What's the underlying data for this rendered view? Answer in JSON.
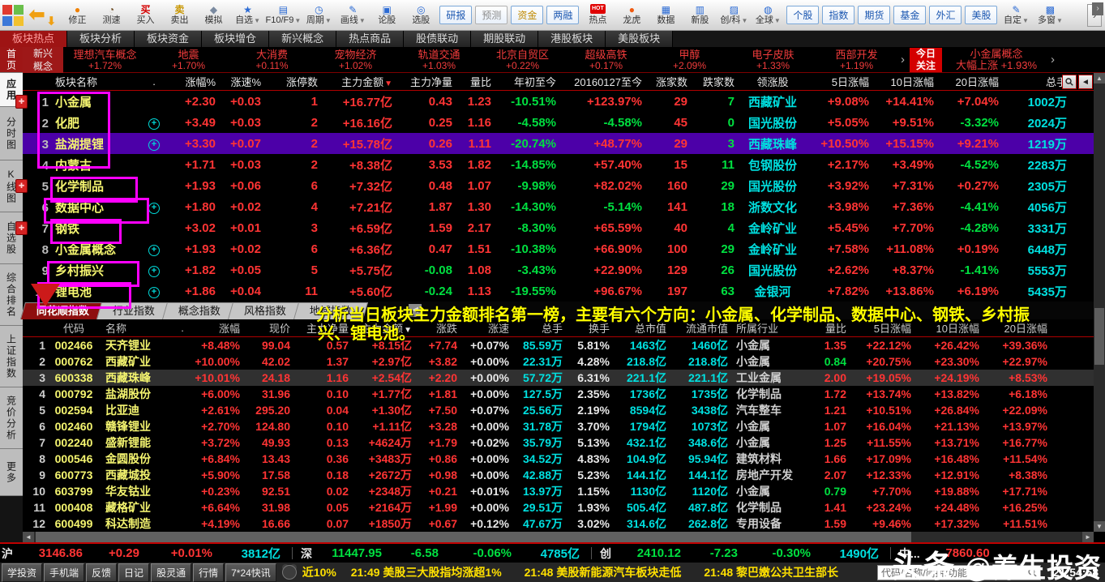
{
  "toolbar": {
    "expand_arrow": "›",
    "items": [
      {
        "id": "correct",
        "label": "修正",
        "icon": "correct"
      },
      {
        "id": "speed-test",
        "label": "测速",
        "icon": "speed"
      },
      {
        "id": "buy",
        "label": "买入",
        "icon": "buy"
      },
      {
        "id": "sell",
        "label": "卖出",
        "icon": "sell"
      },
      {
        "id": "simulate",
        "label": "模拟",
        "icon": "simulate"
      },
      {
        "id": "watchlist",
        "label": "自选",
        "icon": "star",
        "caret": true
      },
      {
        "id": "f10-f9",
        "label": "F10/F9",
        "icon": "doc",
        "caret": true
      },
      {
        "id": "period",
        "label": "周期",
        "icon": "period",
        "caret": true
      },
      {
        "id": "draw-line",
        "label": "画线",
        "icon": "draw",
        "caret": true
      },
      {
        "id": "stock-forum",
        "label": "论股",
        "icon": "forum"
      },
      {
        "id": "stock-picker",
        "label": "选股",
        "icon": "picker"
      },
      {
        "id": "research-report",
        "label": "研报",
        "button": "blue"
      },
      {
        "id": "forecast",
        "label": "预测",
        "button": "grey"
      },
      {
        "id": "capital",
        "label": "资金",
        "button": "gold"
      },
      {
        "id": "margin",
        "label": "两融",
        "button": "blue"
      },
      {
        "id": "hot",
        "label": "热点",
        "icon": "hot"
      },
      {
        "id": "dragon-tiger",
        "label": "龙虎",
        "icon": "dragon"
      },
      {
        "id": "data-center",
        "label": "数据",
        "icon": "data"
      },
      {
        "id": "new-stock",
        "label": "新股",
        "icon": "newstock"
      },
      {
        "id": "chinext-star",
        "label": "创/科",
        "icon": "board",
        "caret": true
      },
      {
        "id": "global",
        "label": "全球",
        "icon": "globe",
        "caret": true
      },
      {
        "id": "stocks",
        "label": "个股",
        "button": "blue"
      },
      {
        "id": "indices",
        "label": "指数",
        "button": "blue"
      },
      {
        "id": "futures",
        "label": "期货",
        "button": "blue"
      },
      {
        "id": "funds",
        "label": "基金",
        "button": "blue"
      },
      {
        "id": "forex",
        "label": "外汇",
        "button": "blue"
      },
      {
        "id": "us-stocks",
        "label": "美股",
        "button": "blue"
      },
      {
        "id": "custom",
        "label": "自定",
        "icon": "custom",
        "caret": true
      },
      {
        "id": "multi-window",
        "label": "多窗",
        "icon": "multiwin",
        "caret": true
      }
    ]
  },
  "nav_tabs": {
    "active_index": 0,
    "items": [
      {
        "id": "sector-hot",
        "label": "板块热点"
      },
      {
        "id": "sector-analysis",
        "label": "板块分析"
      },
      {
        "id": "sector-capital",
        "label": "板块资金"
      },
      {
        "id": "sector-position",
        "label": "板块增仓"
      },
      {
        "id": "new-concepts",
        "label": "新兴概念"
      },
      {
        "id": "hot-commodity",
        "label": "热点商品"
      },
      {
        "id": "stock-bond",
        "label": "股债联动"
      },
      {
        "id": "futures-stock",
        "label": "期股联动"
      },
      {
        "id": "hk-sectors",
        "label": "港股板块"
      },
      {
        "id": "us-sectors",
        "label": "美股板块"
      }
    ]
  },
  "sidebar": {
    "items": [
      {
        "id": "home",
        "label": "首页",
        "style": "home"
      },
      {
        "id": "apps",
        "label": "应用",
        "style": "active"
      },
      {
        "id": "timeline-chart",
        "label": "分时图"
      },
      {
        "id": "kline-chart",
        "label": "K线图"
      },
      {
        "id": "watchlist",
        "label": "自选股"
      },
      {
        "id": "ranking",
        "label": "综合排名"
      },
      {
        "id": "sse-index",
        "label": "上证指数"
      },
      {
        "id": "auction-analysis",
        "label": "竞价分析"
      },
      {
        "id": "more",
        "label": "更多"
      }
    ]
  },
  "concept_strip": {
    "label_line1": "新兴",
    "label_line2": "概念",
    "items": [
      {
        "name": "理想汽车概念",
        "pct": "+1.72%"
      },
      {
        "name": "地震",
        "pct": "+1.70%"
      },
      {
        "name": "大消费",
        "pct": "+0.11%"
      },
      {
        "name": "宠物经济",
        "pct": "+1.02%"
      },
      {
        "name": "轨道交通",
        "pct": "+1.03%"
      },
      {
        "name": "北京自贸区",
        "pct": "+0.22%"
      },
      {
        "name": "超级高铁",
        "pct": "+0.17%"
      },
      {
        "name": "甲醇",
        "pct": "+2.09%"
      },
      {
        "name": "电子皮肤",
        "pct": "+1.33%"
      },
      {
        "name": "西部开发",
        "pct": "+1.19%"
      }
    ],
    "arrow": "›",
    "today_line1": "今日",
    "today_line2": "关注",
    "focus_name": "小金属概念",
    "focus_change": "大幅上涨 +1.93%",
    "arrow2": "›"
  },
  "sector_table": {
    "sort_header": "主力金额",
    "headers": [
      "板块名称",
      ".",
      "涨幅%",
      "涨速%",
      "涨停数",
      "主力金额",
      "主力净量",
      "量比",
      "年初至今",
      "20160127至今",
      "涨家数",
      "跌家数",
      "领涨股",
      "5日涨幅",
      "10日涨幅",
      "20日涨幅",
      "总手"
    ],
    "rows": [
      {
        "num": "1",
        "name": "小金属",
        "marker": true,
        "cells": [
          "+2.30",
          "+0.03",
          "1",
          "+16.77亿",
          "0.43",
          "1.23",
          "-10.51%",
          "+123.97%",
          "29",
          "7",
          "西藏矿业",
          "+9.08%",
          "+14.41%",
          "+7.04%",
          "1002万"
        ]
      },
      {
        "num": "2",
        "name": "化肥",
        "plus": true,
        "cells": [
          "+3.49",
          "+0.03",
          "2",
          "+16.16亿",
          "0.25",
          "1.16",
          "-4.58%",
          "-4.58%",
          "45",
          "0",
          "国光股份",
          "+5.05%",
          "+9.51%",
          "-3.32%",
          "2024万"
        ]
      },
      {
        "num": "3",
        "name": "盐湖提锂",
        "plus": true,
        "selected": true,
        "cells": [
          "+3.30",
          "+0.07",
          "2",
          "+15.78亿",
          "0.26",
          "1.11",
          "-20.74%",
          "+48.77%",
          "29",
          "3",
          "西藏珠峰",
          "+10.50%",
          "+15.15%",
          "+9.21%",
          "1219万"
        ]
      },
      {
        "num": "4",
        "name": "内蒙古",
        "cells": [
          "+1.71",
          "+0.03",
          "2",
          "+8.38亿",
          "3.53",
          "1.82",
          "-14.85%",
          "+57.40%",
          "15",
          "11",
          "包钢股份",
          "+2.17%",
          "+3.49%",
          "-4.52%",
          "2283万"
        ]
      },
      {
        "num": "5",
        "name": "化学制品",
        "marker": true,
        "cells": [
          "+1.93",
          "+0.06",
          "6",
          "+7.32亿",
          "0.48",
          "1.07",
          "-9.98%",
          "+82.02%",
          "160",
          "29",
          "国光股份",
          "+3.92%",
          "+7.31%",
          "+0.27%",
          "2305万"
        ]
      },
      {
        "num": "6",
        "name": "数据中心",
        "plus": true,
        "cells": [
          "+1.80",
          "+0.02",
          "4",
          "+7.21亿",
          "1.87",
          "1.30",
          "-14.30%",
          "-5.14%",
          "141",
          "18",
          "浙数文化",
          "+3.98%",
          "+7.36%",
          "-4.41%",
          "4056万"
        ]
      },
      {
        "num": "7",
        "name": "钢铁",
        "marker": true,
        "cells": [
          "+3.02",
          "+0.01",
          "3",
          "+6.59亿",
          "1.59",
          "2.17",
          "-8.30%",
          "+65.59%",
          "40",
          "4",
          "金岭矿业",
          "+5.45%",
          "+7.70%",
          "-4.28%",
          "3331万"
        ]
      },
      {
        "num": "8",
        "name": "小金属概念",
        "plus": true,
        "cells": [
          "+1.93",
          "+0.02",
          "6",
          "+6.36亿",
          "0.47",
          "1.51",
          "-10.38%",
          "+66.90%",
          "100",
          "29",
          "金岭矿业",
          "+7.58%",
          "+11.08%",
          "+0.19%",
          "6448万"
        ]
      },
      {
        "num": "9",
        "name": "乡村振兴",
        "plus": true,
        "cells": [
          "+1.82",
          "+0.05",
          "5",
          "+5.75亿",
          "-0.08",
          "1.08",
          "-3.43%",
          "+22.90%",
          "129",
          "26",
          "国光股份",
          "+2.62%",
          "+8.37%",
          "-1.41%",
          "5553万"
        ]
      },
      {
        "num": "10",
        "name": "锂电池",
        "plus": true,
        "cells": [
          "+1.86",
          "+0.04",
          "11",
          "+5.60亿",
          "-0.24",
          "1.13",
          "-19.55%",
          "+96.67%",
          "197",
          "63",
          "金银河",
          "+7.82%",
          "+13.86%",
          "+6.19%",
          "5435万"
        ]
      }
    ]
  },
  "index_tabs": {
    "active_index": 0,
    "left_arrow": "◀",
    "right_arrow": "›",
    "items": [
      {
        "id": "ths-index",
        "label": "同花顺指数"
      },
      {
        "id": "industry-index",
        "label": "行业指数"
      },
      {
        "id": "concept-index",
        "label": "概念指数"
      },
      {
        "id": "style-index",
        "label": "风格指数"
      },
      {
        "id": "region-index",
        "label": "地域指数"
      }
    ]
  },
  "annotation": {
    "line1": "分析当日板块主力金额排名第一榜，主要有六个方向：小金属、化学制品、数据中心、钢铁、乡村振",
    "line2": "兴、锂电池。"
  },
  "stock_table": {
    "sort_header": "主力金额",
    "headers": [
      "",
      "代码",
      "名称",
      ".",
      "涨幅",
      "现价",
      "主力净量",
      "主力金额",
      "涨跌",
      "涨速",
      "总手",
      "换手",
      "总市值",
      "流通市值",
      "所属行业",
      "量比",
      "5日涨幅",
      "10日涨幅",
      "20日涨幅"
    ],
    "rows": [
      {
        "num": "1",
        "code": "002466",
        "name": "天齐锂业",
        "cells": [
          "+8.48%",
          "99.04",
          "0.57",
          "+8.15亿",
          "+7.74",
          "+0.07%",
          "85.59万",
          "5.81%",
          "1463亿",
          "1460亿",
          "小金属",
          "1.35",
          "+22.12%",
          "+26.42%",
          "+39.36%"
        ]
      },
      {
        "num": "2",
        "code": "000762",
        "name": "西藏矿业",
        "cells": [
          "+10.00%",
          "42.02",
          "1.37",
          "+2.97亿",
          "+3.82",
          "+0.00%",
          "22.31万",
          "4.28%",
          "218.8亿",
          "218.8亿",
          "小金属",
          "0.84",
          "+20.75%",
          "+23.30%",
          "+22.97%"
        ]
      },
      {
        "num": "3",
        "code": "600338",
        "name": "西藏珠峰",
        "selected": true,
        "cells": [
          "+10.01%",
          "24.18",
          "1.16",
          "+2.54亿",
          "+2.20",
          "+0.00%",
          "57.72万",
          "6.31%",
          "221.1亿",
          "221.1亿",
          "工业金属",
          "2.00",
          "+19.05%",
          "+24.19%",
          "+8.53%"
        ]
      },
      {
        "num": "4",
        "code": "000792",
        "name": "盐湖股份",
        "cells": [
          "+6.00%",
          "31.96",
          "0.10",
          "+1.77亿",
          "+1.81",
          "+0.00%",
          "127.5万",
          "2.35%",
          "1736亿",
          "1735亿",
          "化学制品",
          "1.72",
          "+13.74%",
          "+13.82%",
          "+6.18%"
        ]
      },
      {
        "num": "5",
        "code": "002594",
        "name": "比亚迪",
        "cells": [
          "+2.61%",
          "295.20",
          "0.04",
          "+1.30亿",
          "+7.50",
          "+0.07%",
          "25.56万",
          "2.19%",
          "8594亿",
          "3438亿",
          "汽车整车",
          "1.21",
          "+10.51%",
          "+26.84%",
          "+22.09%"
        ]
      },
      {
        "num": "6",
        "code": "002460",
        "name": "赣锋锂业",
        "cells": [
          "+2.70%",
          "124.80",
          "0.10",
          "+1.11亿",
          "+3.28",
          "+0.00%",
          "31.78万",
          "3.70%",
          "1794亿",
          "1073亿",
          "小金属",
          "1.07",
          "+16.04%",
          "+21.13%",
          "+13.97%"
        ]
      },
      {
        "num": "7",
        "code": "002240",
        "name": "盛新锂能",
        "cells": [
          "+3.72%",
          "49.93",
          "0.13",
          "+4624万",
          "+1.79",
          "+0.02%",
          "35.79万",
          "5.13%",
          "432.1亿",
          "348.6亿",
          "小金属",
          "1.25",
          "+11.55%",
          "+13.71%",
          "+16.77%"
        ]
      },
      {
        "num": "8",
        "code": "000546",
        "name": "金圆股份",
        "cells": [
          "+6.84%",
          "13.43",
          "0.36",
          "+3483万",
          "+0.86",
          "+0.00%",
          "34.52万",
          "4.83%",
          "104.9亿",
          "95.94亿",
          "建筑材料",
          "1.66",
          "+17.09%",
          "+16.48%",
          "+11.54%"
        ]
      },
      {
        "num": "9",
        "code": "600773",
        "name": "西藏城投",
        "cells": [
          "+5.90%",
          "17.58",
          "0.18",
          "+2672万",
          "+0.98",
          "+0.00%",
          "42.88万",
          "5.23%",
          "144.1亿",
          "144.1亿",
          "房地产开发",
          "2.07",
          "+12.33%",
          "+12.91%",
          "+8.38%"
        ]
      },
      {
        "num": "10",
        "code": "603799",
        "name": "华友钴业",
        "cells": [
          "+0.23%",
          "92.51",
          "0.02",
          "+2348万",
          "+0.21",
          "+0.01%",
          "13.97万",
          "1.15%",
          "1130亿",
          "1120亿",
          "小金属",
          "0.79",
          "+7.70%",
          "+19.88%",
          "+17.71%"
        ]
      },
      {
        "num": "11",
        "code": "000408",
        "name": "藏格矿业",
        "cells": [
          "+6.64%",
          "31.98",
          "0.05",
          "+2164万",
          "+1.99",
          "+0.00%",
          "29.51万",
          "1.93%",
          "505.4亿",
          "487.8亿",
          "化学制品",
          "1.41",
          "+23.24%",
          "+24.48%",
          "+16.25%"
        ]
      },
      {
        "num": "12",
        "code": "600499",
        "name": "科达制造",
        "cells": [
          "+4.19%",
          "16.66",
          "0.07",
          "+1850万",
          "+0.67",
          "+0.12%",
          "47.67万",
          "3.02%",
          "314.6亿",
          "262.8亿",
          "专用设备",
          "1.59",
          "+9.46%",
          "+17.32%",
          "+11.51%"
        ]
      }
    ]
  },
  "index_bar": {
    "segments": [
      {
        "label": "沪",
        "value": "3146.86",
        "chg": "+0.29",
        "pct": "+0.01%",
        "amt": "3812亿",
        "trend": "up"
      },
      {
        "label": "深",
        "value": "11447.95",
        "chg": "-6.58",
        "pct": "-0.06%",
        "amt": "4785亿",
        "trend": "down"
      },
      {
        "label": "创",
        "value": "2410.12",
        "chg": "-7.23",
        "pct": "-0.30%",
        "amt": "1490亿",
        "trend": "down"
      },
      {
        "label": "中...",
        "value": "7860.60",
        "chg": "",
        "pct": "",
        "amt": "",
        "trend": "up"
      }
    ]
  },
  "status_bar": {
    "buttons": [
      "学投资",
      "手机端",
      "反馈",
      "日记",
      "股灵通",
      "行情",
      "7*24快讯"
    ],
    "news_text": "近10%　 21:49 美股三大股指均涨超1%　　21:48 美股新能源汽车板块走低　　21:48 黎巴嫩公共卫生部长",
    "search_placeholder": "代码/名称/简拼/功能",
    "clock": "21:54:58"
  },
  "watermark": {
    "part1": "头条 ",
    "part2": "@养生投资"
  }
}
